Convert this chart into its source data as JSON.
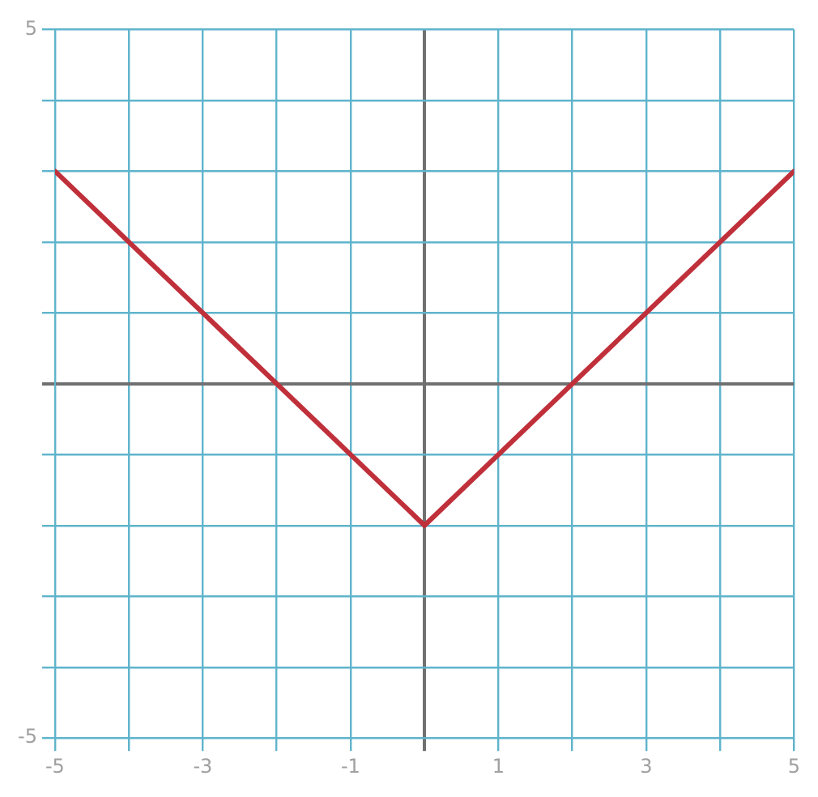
{
  "chart_data": {
    "type": "line",
    "x": [
      -5,
      0,
      5
    ],
    "series": [
      {
        "color": "#c0303a",
        "values": [
          3,
          -2,
          3
        ]
      }
    ],
    "xlim": [
      -5,
      5
    ],
    "ylim": [
      -5,
      5
    ],
    "xticks": [
      -5,
      {
        "value": -4,
        "label": null
      },
      -3,
      {
        "value": -2,
        "label": null
      },
      -1,
      {
        "value": 0,
        "label": null
      },
      1,
      {
        "value": 2,
        "label": null
      },
      3,
      {
        "value": 4,
        "label": null
      },
      5
    ],
    "yticks": [
      -5,
      {
        "value": -4,
        "label": null
      },
      {
        "value": -3,
        "label": null
      },
      {
        "value": -2,
        "label": null
      },
      {
        "value": -1,
        "label": null
      },
      {
        "value": 0,
        "label": null
      },
      {
        "value": 1,
        "label": null
      },
      {
        "value": 2,
        "label": null
      },
      {
        "value": 3,
        "label": null
      },
      {
        "value": 4,
        "label": null
      },
      5
    ],
    "grid": true,
    "marker": "none",
    "line_style": "solid",
    "legend": false
  }
}
